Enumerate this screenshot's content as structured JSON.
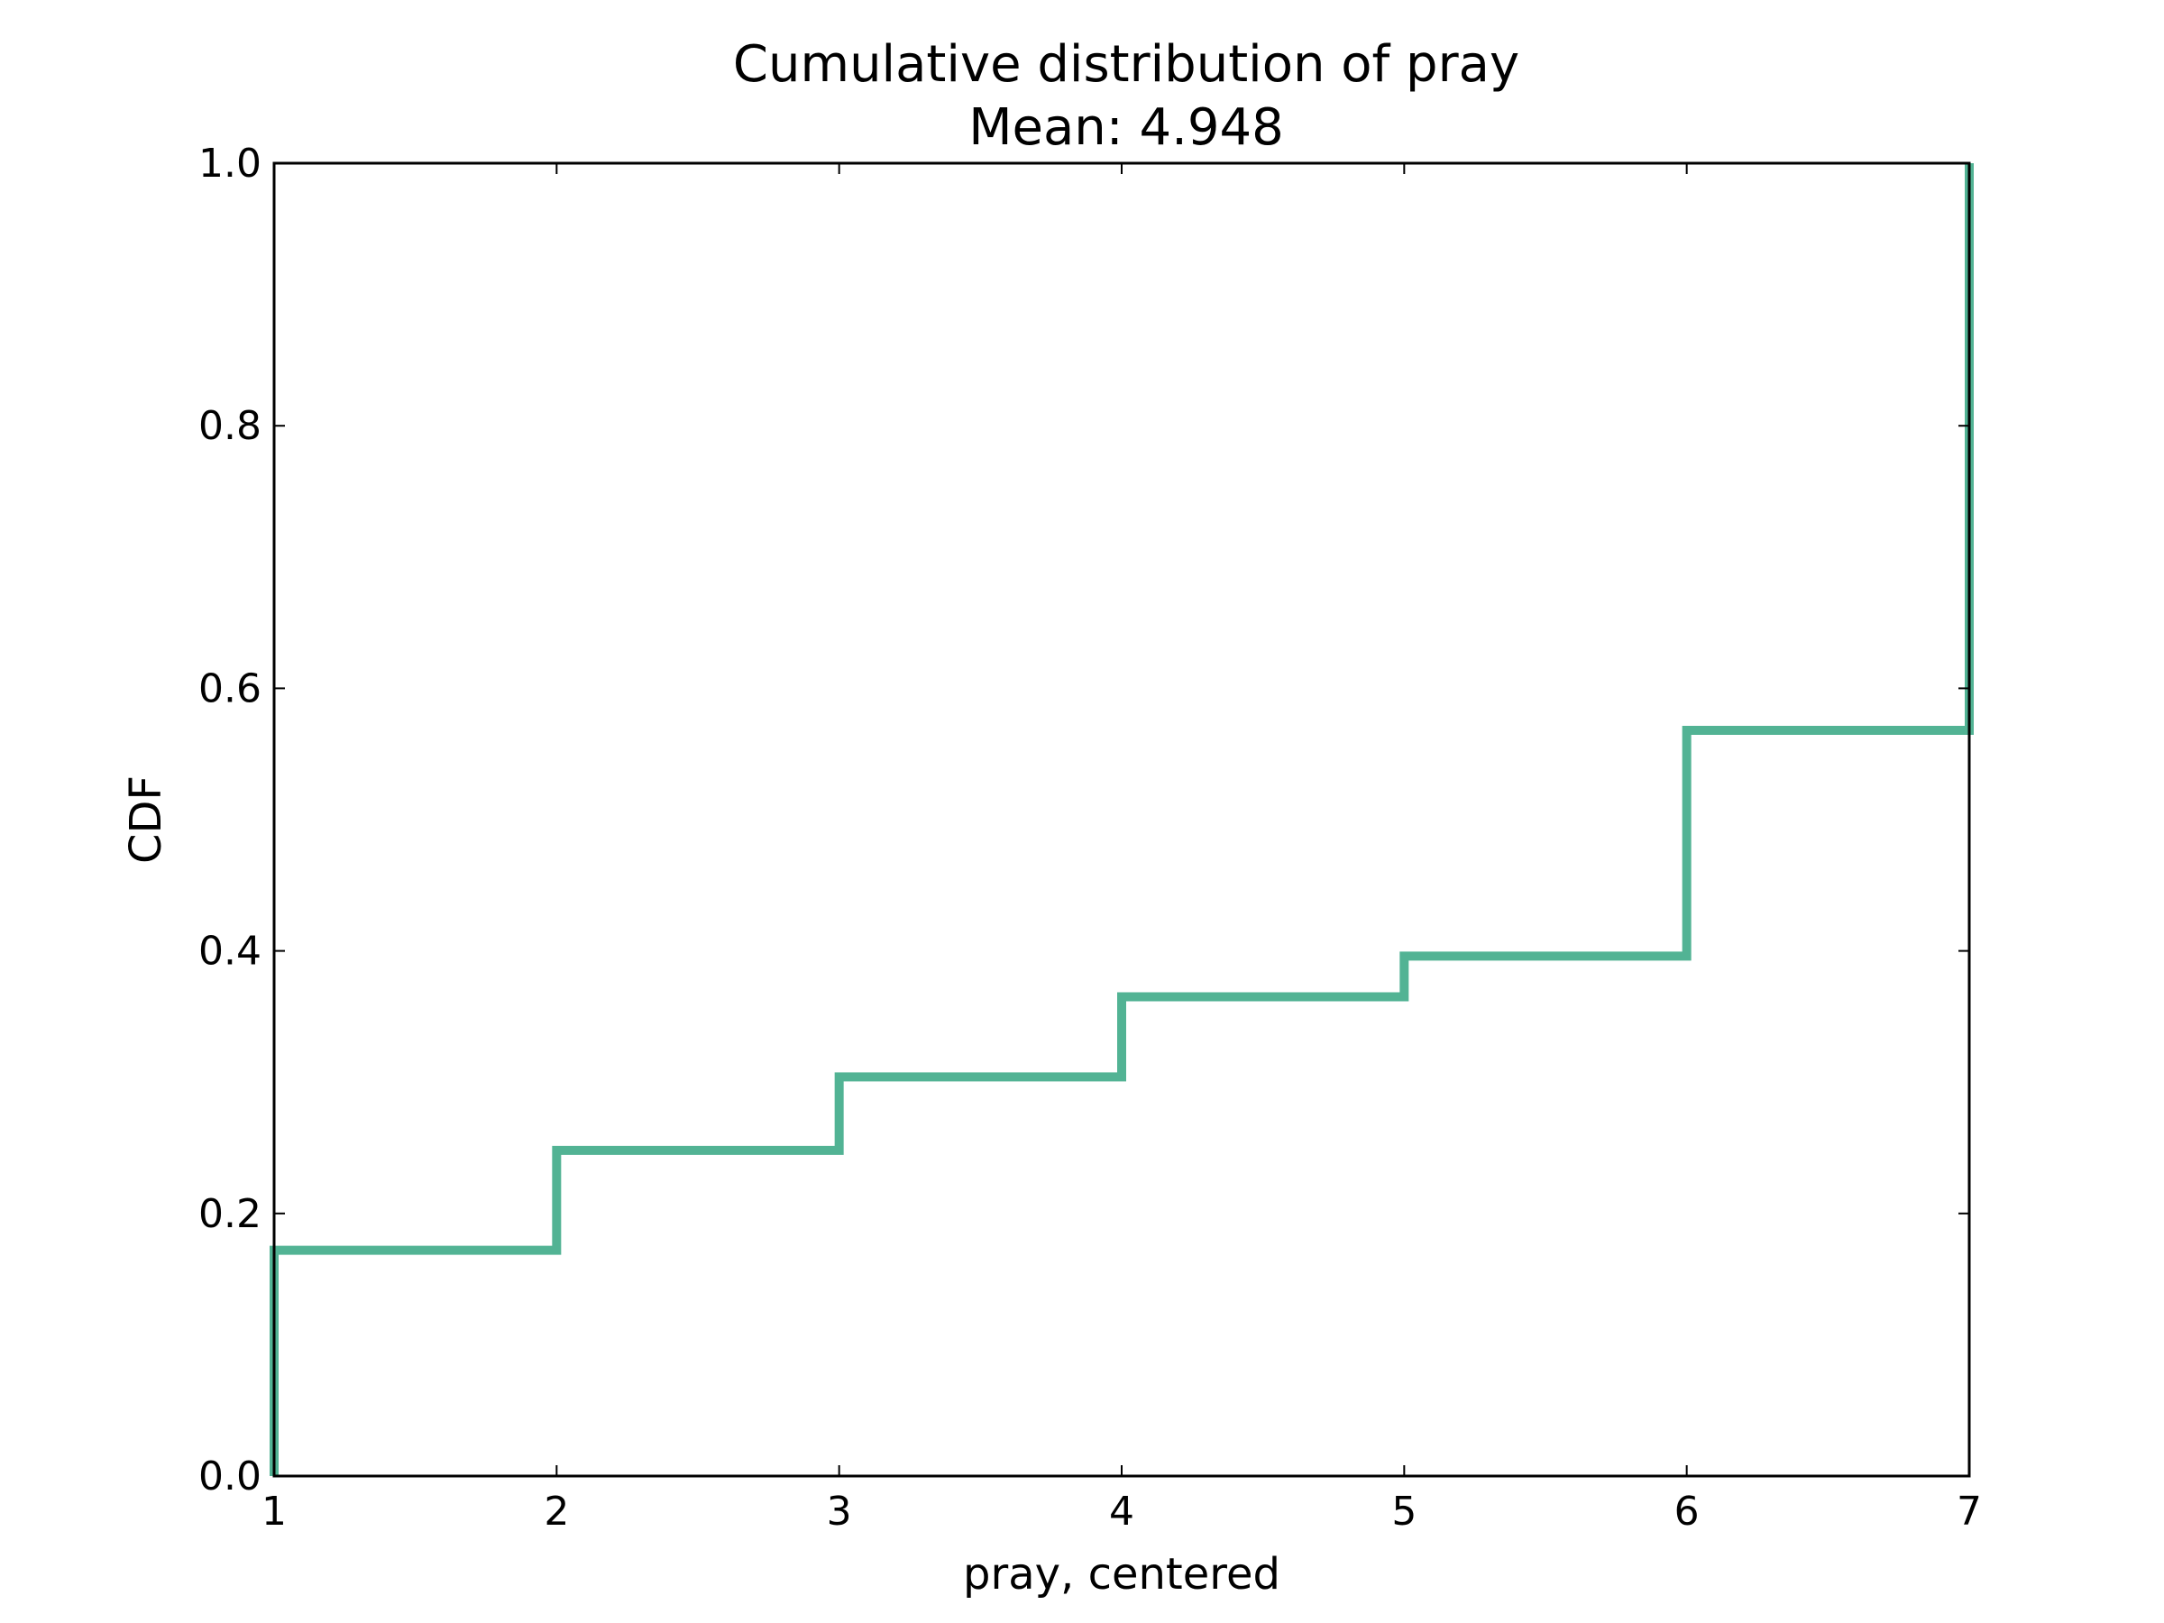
{
  "chart_data": {
    "type": "line",
    "step": true,
    "title": "Cumulative distribution of pray",
    "subtitle": "Mean: 4.948",
    "xlabel": "pray, centered",
    "ylabel": "CDF",
    "xlim": [
      1,
      7
    ],
    "ylim": [
      0,
      1
    ],
    "x_ticks": [
      "1",
      "2",
      "3",
      "4",
      "5",
      "6",
      "7"
    ],
    "y_ticks": [
      "0.0",
      "0.2",
      "0.4",
      "0.6",
      "0.8",
      "1.0"
    ],
    "grid": false,
    "legend": "none",
    "series": [
      {
        "color": "#52b394",
        "x": [
          1,
          2,
          3,
          4,
          5,
          6,
          7
        ],
        "y": [
          0.172,
          0.248,
          0.304,
          0.365,
          0.396,
          0.568,
          1.0
        ]
      }
    ]
  }
}
